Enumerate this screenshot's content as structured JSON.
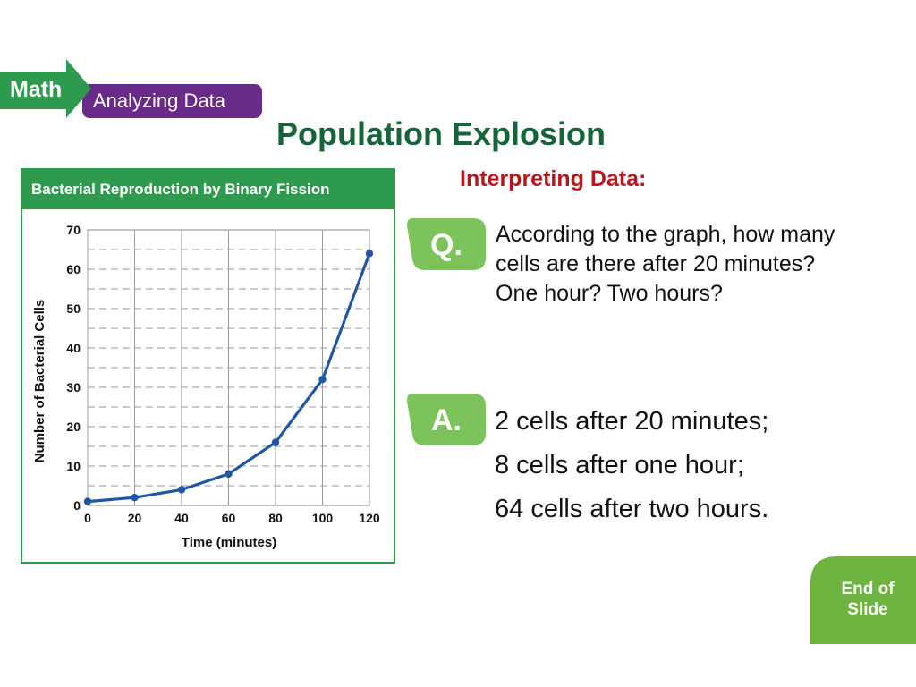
{
  "banner": {
    "label": "Math",
    "sublabel": "Analyzing Data"
  },
  "slide": {
    "title": "Population Explosion",
    "section": "Interpreting Data:"
  },
  "question": {
    "badge": "Q.",
    "text": "According to the graph, how many cells are there after 20 minutes? One hour? Two hours?"
  },
  "answer": {
    "badge": "A.",
    "lines": [
      "2 cells after 20 minutes;",
      "8 cells after one hour;",
      "64 cells after two hours."
    ]
  },
  "end_of_slide": {
    "line1": "End of",
    "line2": "Slide"
  },
  "colors": {
    "green": "#2e9a4d",
    "dark_green": "#16643a",
    "purple": "#6a2a8a",
    "red": "#b5171d",
    "line": "#1f57a6",
    "badge_green": "#7cc35b"
  },
  "chart_data": {
    "type": "line",
    "title": "Bacterial Reproduction by Binary Fission",
    "xlabel": "Time (minutes)",
    "ylabel": "Number of Bacterial Cells",
    "x": [
      0,
      20,
      40,
      60,
      80,
      100,
      120
    ],
    "y": [
      1,
      2,
      4,
      8,
      16,
      32,
      64
    ],
    "xticks": [
      "0",
      "20",
      "40",
      "60",
      "80",
      "100",
      "120"
    ],
    "yticks": [
      "0",
      "10",
      "20",
      "30",
      "40",
      "50",
      "60",
      "70"
    ],
    "xlim": [
      0,
      120
    ],
    "ylim": [
      0,
      70
    ],
    "grid": true
  }
}
